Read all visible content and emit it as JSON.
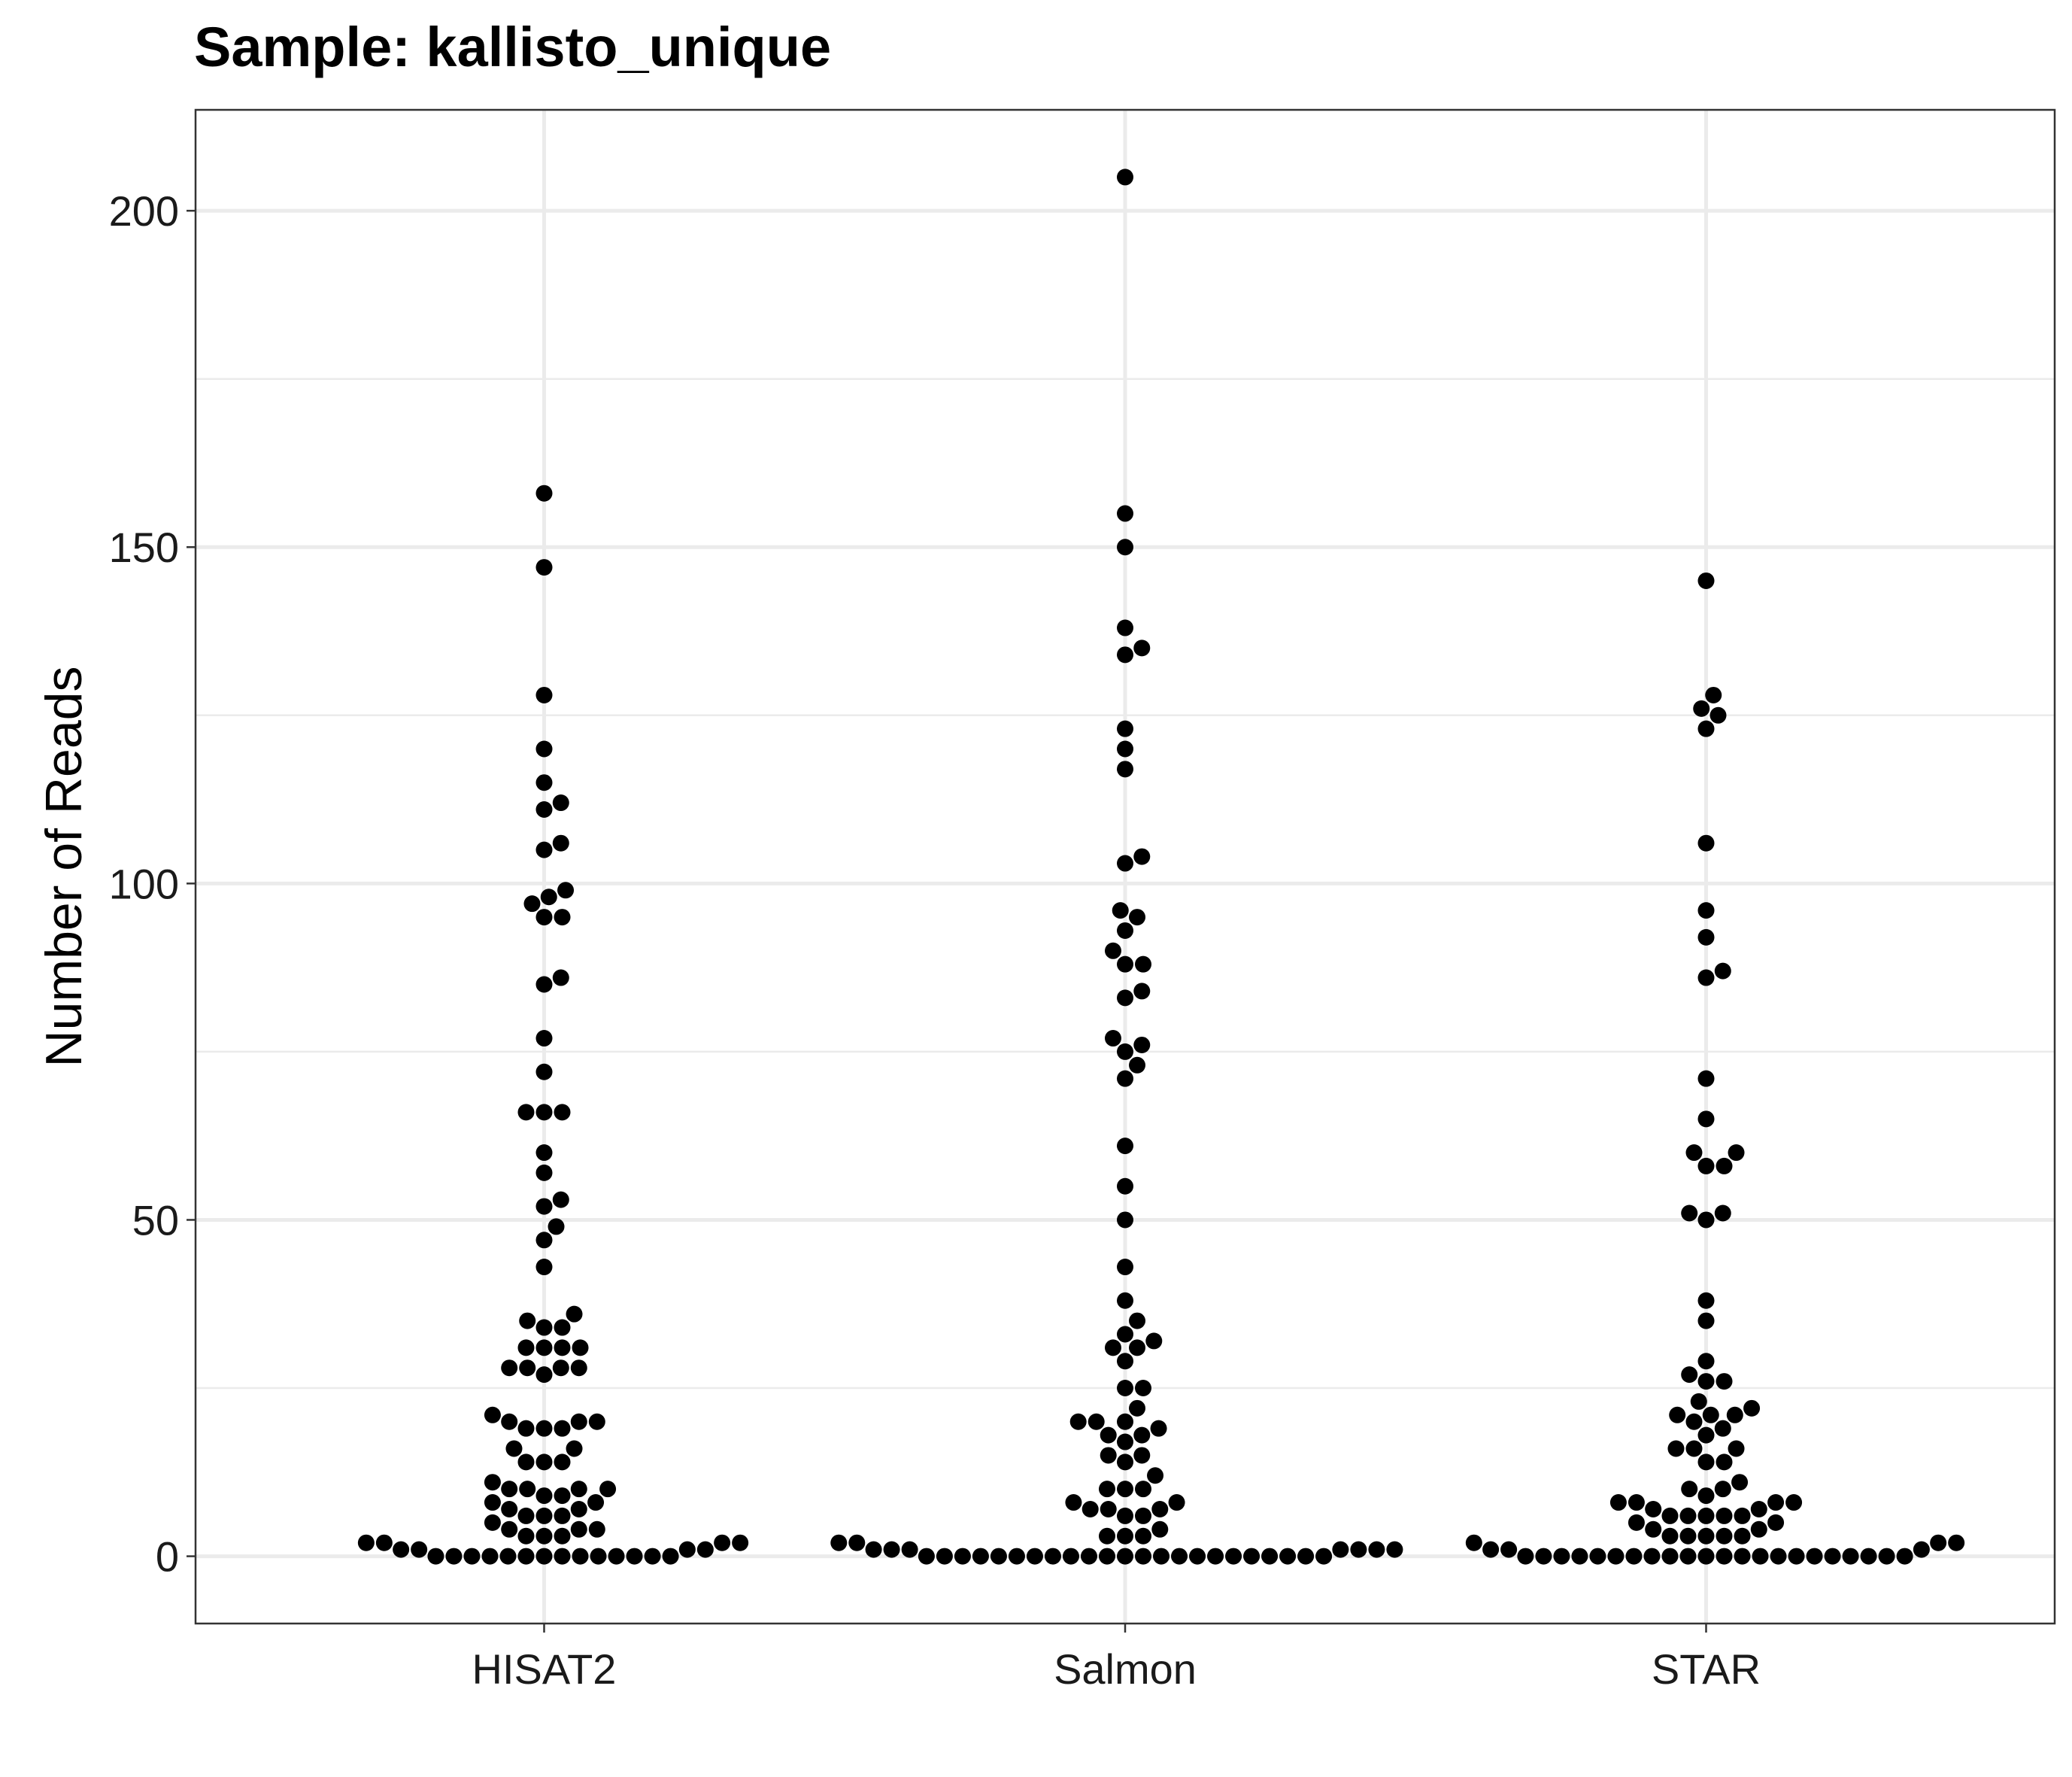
{
  "chart_data": {
    "type": "scatter",
    "subtype": "beeswarm",
    "title": "Sample: kallisto_unique",
    "xlabel": "",
    "ylabel": "Number of Reads",
    "categories": [
      "HISAT2",
      "Salmon",
      "STAR"
    ],
    "ylim": [
      -10,
      215
    ],
    "yticks": [
      0,
      50,
      100,
      150,
      200
    ],
    "grid": true,
    "legend": "none",
    "point_color": "#000000",
    "series": [
      {
        "category": "HISAT2",
        "values": [
          158,
          147,
          128,
          120,
          115,
          112,
          111,
          106,
          105,
          99,
          98,
          97,
          95,
          95,
          86,
          85,
          77,
          72,
          66,
          66,
          66,
          60,
          57,
          53,
          52,
          49,
          47,
          43,
          36,
          35,
          34,
          34,
          31,
          31,
          31,
          31,
          28,
          28,
          28,
          28,
          27,
          21,
          20,
          20,
          20,
          19,
          19,
          19,
          16,
          16,
          14,
          14,
          14,
          11,
          10,
          10,
          10,
          10,
          9,
          9,
          8,
          8,
          7,
          7,
          6,
          6,
          6,
          5,
          4,
          4,
          4,
          3,
          3,
          3,
          2,
          2,
          2,
          2,
          1,
          1,
          1,
          1,
          0,
          0,
          0,
          0,
          0,
          0,
          0,
          0,
          0,
          0,
          0,
          0,
          0,
          0
        ]
      },
      {
        "category": "Salmon",
        "values": [
          205,
          155,
          150,
          138,
          135,
          134,
          123,
          120,
          117,
          104,
          103,
          96,
          95,
          93,
          90,
          88,
          88,
          84,
          83,
          77,
          76,
          75,
          73,
          71,
          61,
          55,
          50,
          43,
          38,
          35,
          33,
          32,
          31,
          31,
          29,
          25,
          25,
          22,
          20,
          20,
          20,
          19,
          18,
          18,
          17,
          15,
          15,
          14,
          12,
          10,
          10,
          10,
          8,
          8,
          7,
          7,
          7,
          6,
          6,
          4,
          3,
          3,
          3,
          2,
          2,
          1,
          1,
          1,
          1,
          1,
          1,
          1,
          0,
          0,
          0,
          0,
          0,
          0,
          0,
          0,
          0,
          0,
          0,
          0,
          0,
          0,
          0,
          0,
          0,
          0,
          0,
          0,
          0,
          0,
          0
        ]
      },
      {
        "category": "STAR",
        "values": [
          145,
          128,
          126,
          125,
          123,
          106,
          96,
          92,
          87,
          86,
          71,
          65,
          60,
          60,
          58,
          58,
          51,
          51,
          50,
          38,
          35,
          29,
          27,
          26,
          26,
          23,
          22,
          21,
          21,
          21,
          20,
          19,
          18,
          16,
          16,
          16,
          14,
          14,
          11,
          10,
          10,
          9,
          8,
          8,
          8,
          8,
          7,
          7,
          6,
          6,
          6,
          6,
          6,
          5,
          5,
          4,
          4,
          3,
          3,
          3,
          3,
          3,
          2,
          2,
          2,
          1,
          1,
          1,
          0,
          0,
          0,
          0,
          0,
          0,
          0,
          0,
          0,
          0,
          0,
          0,
          0,
          0,
          0,
          0,
          0,
          0,
          0,
          0,
          0,
          0
        ]
      }
    ]
  }
}
